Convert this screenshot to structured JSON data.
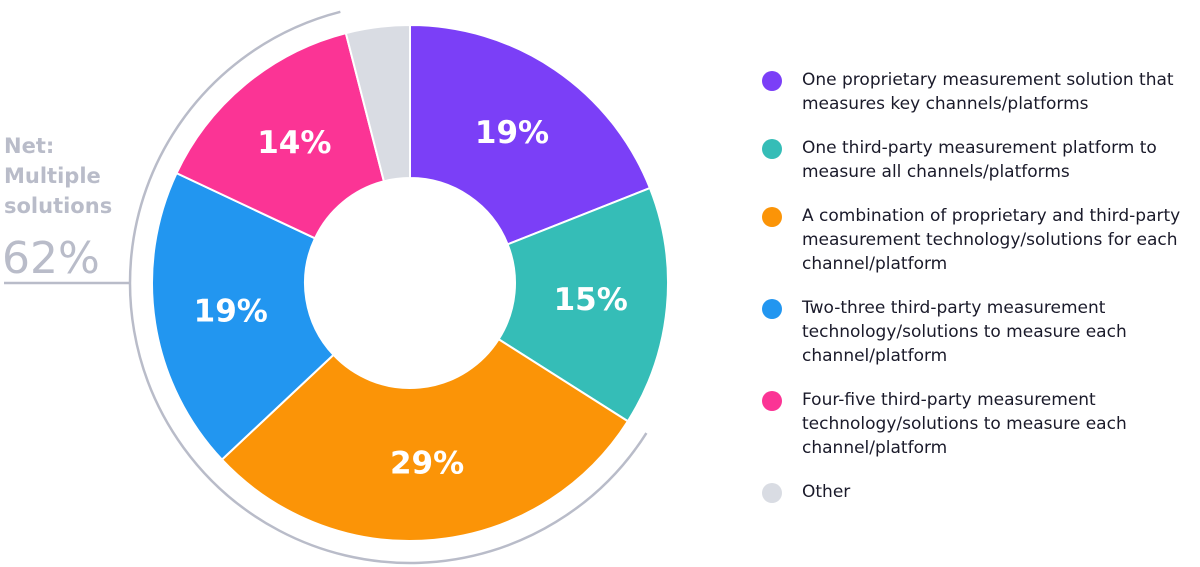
{
  "chart_data": {
    "type": "pie",
    "donut": true,
    "title": "",
    "categories": [
      "One proprietary measurement solution that measures key channels/platforms",
      "One third-party measurement platform to measure all channels/platforms",
      "A combination of proprietary and third-party measurement technology/solutions for each channel/platform",
      "Two-three third-party measurement technology/solutions to measure each channel/platform",
      "Four-five third-party measurement technology/solutions to measure each channel/platform",
      "Other"
    ],
    "values": [
      19,
      15,
      29,
      19,
      14,
      4
    ],
    "value_labels": [
      "19%",
      "15%",
      "29%",
      "19%",
      "14%",
      ""
    ],
    "colors": [
      "#7b3ff7",
      "#35bdb7",
      "#fb9407",
      "#2296f0",
      "#fb3495",
      "#d9dce3"
    ],
    "legend_position": "right",
    "bracket": {
      "lines": [
        "Net:",
        "Multiple",
        "solutions"
      ],
      "value": "62%"
    }
  }
}
